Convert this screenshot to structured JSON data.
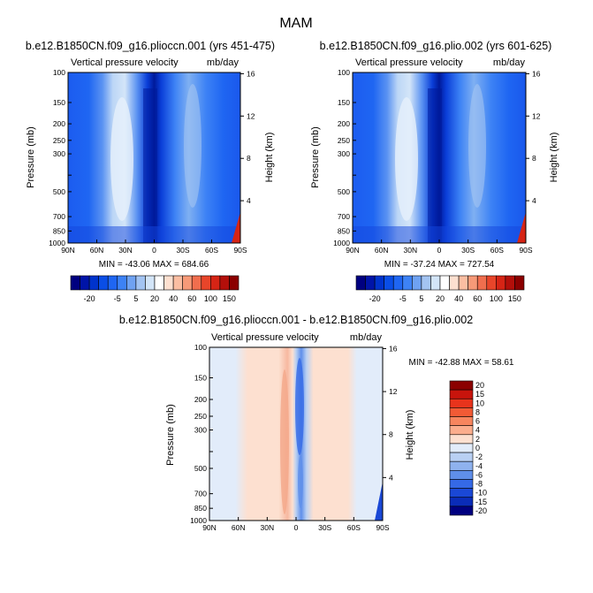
{
  "page_title": "MAM",
  "chart_data": [
    {
      "type": "heatmap",
      "title": "b.e12.B1850CN.f09_g16.plioccn.001 (yrs 451-475)",
      "subtitle": "Vertical pressure velocity",
      "units": "mb/day",
      "xlabel": "",
      "ylabel": "Pressure (mb)",
      "y2label": "Height (km)",
      "xticks": [
        "90N",
        "60N",
        "30N",
        "0",
        "30S",
        "60S",
        "90S"
      ],
      "yticks": [
        100,
        150,
        200,
        250,
        300,
        400,
        500,
        700,
        850,
        1000
      ],
      "yticks_labeled": [
        "100",
        "150",
        "200",
        "250",
        "300",
        "500",
        "700",
        "850",
        "1000"
      ],
      "y2ticks": [
        "16",
        "12",
        "8",
        "4"
      ],
      "ylim": [
        1000,
        100
      ],
      "stats": "MIN = -43.06   MAX = 684.66",
      "min": -43.06,
      "max": 684.66,
      "colorbar_levels": [
        -30,
        -25,
        -20,
        -15,
        -10,
        -5,
        0,
        5,
        10,
        20,
        30,
        40,
        50,
        60,
        80,
        100,
        120,
        150
      ],
      "colorbar_labels": [
        "-20",
        "-5",
        "5",
        "20",
        "40",
        "60",
        "100",
        "150"
      ]
    },
    {
      "type": "heatmap",
      "title": "b.e12.B1850CN.f09_g16.plio.002 (yrs 601-625)",
      "subtitle": "Vertical pressure velocity",
      "units": "mb/day",
      "xlabel": "",
      "ylabel": "Pressure (mb)",
      "y2label": "Height (km)",
      "xticks": [
        "90N",
        "60N",
        "30N",
        "0",
        "30S",
        "60S",
        "90S"
      ],
      "yticks": [
        100,
        150,
        200,
        250,
        300,
        400,
        500,
        700,
        850,
        1000
      ],
      "yticks_labeled": [
        "100",
        "150",
        "200",
        "250",
        "300",
        "500",
        "700",
        "850",
        "1000"
      ],
      "y2ticks": [
        "16",
        "12",
        "8",
        "4"
      ],
      "ylim": [
        1000,
        100
      ],
      "stats": "MIN = -37.24   MAX = 727.54",
      "min": -37.24,
      "max": 727.54,
      "colorbar_levels": [
        -30,
        -25,
        -20,
        -15,
        -10,
        -5,
        0,
        5,
        10,
        20,
        30,
        40,
        50,
        60,
        80,
        100,
        120,
        150
      ],
      "colorbar_labels": [
        "-20",
        "-5",
        "5",
        "20",
        "40",
        "60",
        "100",
        "150"
      ]
    },
    {
      "type": "heatmap",
      "title": "b.e12.B1850CN.f09_g16.plioccn.001 - b.e12.B1850CN.f09_g16.plio.002",
      "subtitle": "Vertical pressure velocity",
      "units": "mb/day",
      "xlabel": "",
      "ylabel": "Pressure (mb)",
      "y2label": "Height (km)",
      "xticks": [
        "90N",
        "60N",
        "30N",
        "0",
        "30S",
        "60S",
        "90S"
      ],
      "yticks": [
        100,
        150,
        200,
        250,
        300,
        400,
        500,
        700,
        850,
        1000
      ],
      "yticks_labeled": [
        "100",
        "150",
        "200",
        "250",
        "300",
        "500",
        "700",
        "850",
        "1000"
      ],
      "y2ticks": [
        "16",
        "12",
        "8",
        "4"
      ],
      "ylim": [
        1000,
        100
      ],
      "stats": "MIN = -42.88   MAX = 58.61",
      "min": -42.88,
      "max": 58.61,
      "colorbar_levels": [
        20,
        15,
        10,
        8,
        6,
        4,
        2,
        0,
        -2,
        -4,
        -6,
        -8,
        -10,
        -15,
        -20
      ],
      "colorbar_labels": [
        "20",
        "15",
        "10",
        "8",
        "6",
        "4",
        "2",
        "0",
        "-2",
        "-4",
        "-6",
        "-8",
        "-10",
        "-15",
        "-20"
      ]
    }
  ],
  "colors": {
    "abs_bar": [
      "#000080",
      "#0014a8",
      "#0033cc",
      "#0a4ee6",
      "#1f66f2",
      "#3d82f5",
      "#6fa2f2",
      "#a3c4f2",
      "#d3e5f8",
      "#ffffff",
      "#fde0d0",
      "#fbbea2",
      "#f79a78",
      "#f06e4e",
      "#e8452a",
      "#d62415",
      "#b30f0a",
      "#8b0000"
    ],
    "diff_bar": [
      "#8b0000",
      "#c8140c",
      "#e8341c",
      "#f25a35",
      "#f7855e",
      "#fbad8d",
      "#fde0d0",
      "#e2ecfa",
      "#b9d0f3",
      "#8fb2ee",
      "#5f8fea",
      "#3569e6",
      "#1a48d6",
      "#0a2cb8",
      "#000080"
    ]
  }
}
